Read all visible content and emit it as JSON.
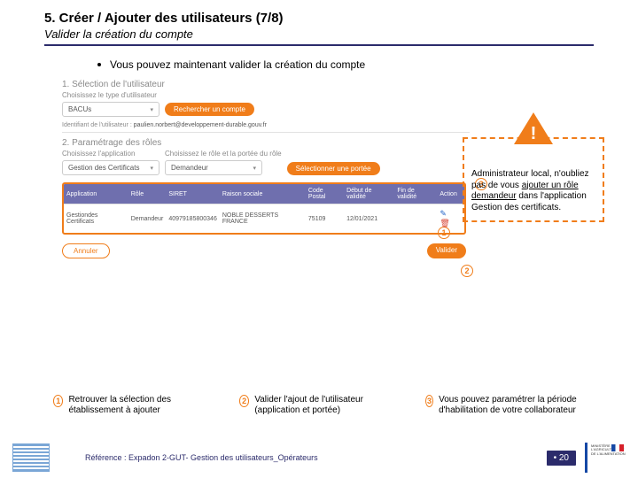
{
  "header": {
    "title": "5. Créer / Ajouter des utilisateurs (7/8)",
    "subtitle": "Valider la création du compte"
  },
  "bullet": {
    "text": "Vous pouvez maintenant valider la création du compte"
  },
  "screenshot": {
    "section1": {
      "num": "1. Sélection de l'utilisateur",
      "label": "Choisissez le type d'utilisateur",
      "dropdown": "BACUs",
      "button": "Rechercher un compte"
    },
    "ident": {
      "label": "Identifiant de l'utilisateur :",
      "value": "paulien.norbert@developpement-durable.gouv.fr"
    },
    "section2": {
      "num": "2. Paramétrage des rôles",
      "label_app": "Choisissez l'application",
      "app_value": "Gestion des Certificats",
      "label_role": "Choisissez le rôle et la portée du rôle",
      "role_value": "Demandeur",
      "button": "Sélectionner une portée"
    },
    "table": {
      "headers": [
        "Application",
        "Rôle",
        "SIRET",
        "Raison sociale",
        "Code Postal",
        "Début de validité",
        "Fin de validité",
        "Action"
      ],
      "row": {
        "app": "Gestiondes Certificats",
        "role": "Demandeur",
        "siret": "40979185800346",
        "raison": "NOBLE DESSERTS FRANCE",
        "cp": "75109",
        "debut": "12/01/2021",
        "fin": ""
      }
    },
    "actions": {
      "cancel": "Annuler",
      "validate": "Valider"
    }
  },
  "warning": {
    "text_pre": "Administrateur local, n'oubliez pas de vous ",
    "text_ul": "ajouter un rôle demandeur",
    "text_post": " dans l'application Gestion des certificats."
  },
  "callouts": {
    "c1": "1",
    "c2": "2",
    "c3": "3"
  },
  "legend": {
    "l1": "Retrouver la sélection des établissement à ajouter",
    "l2": "Valider l'ajout de l'utilisateur (application et portée)",
    "l3": "Vous pouvez paramétrer la période d'habilitation de votre collaborateur"
  },
  "footer": {
    "ref": "Référence : Expadon 2-GUT- Gestion des utilisateurs_Opérateurs",
    "page_prefix": "• ",
    "page": "20",
    "ministry": "MINISTÈRE DE L'AGRICULTURE ET DE L'ALIMENTATION"
  },
  "colors": {
    "accent": "#f07d1a",
    "navy": "#2b2b6b",
    "thead": "#6f6fae"
  }
}
